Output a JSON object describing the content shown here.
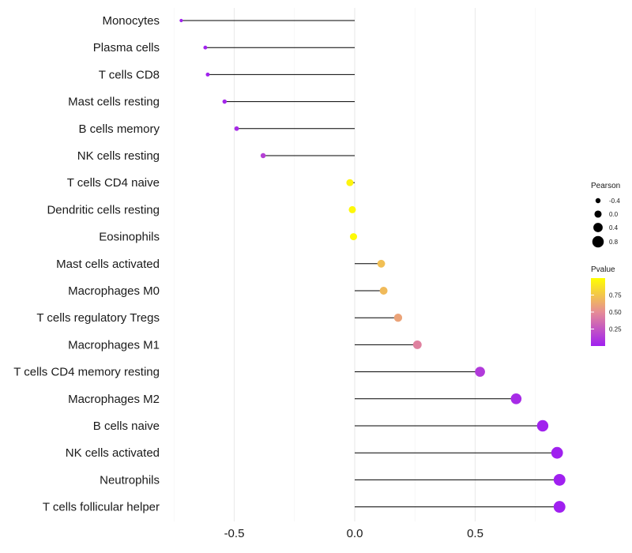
{
  "chart_data": {
    "type": "lollipop",
    "title": "",
    "xlabel": "",
    "ylabel": "",
    "xlim": [
      -0.75,
      0.9
    ],
    "xticks": [
      -0.5,
      0.0,
      0.5
    ],
    "xtick_labels": [
      "-0.5",
      "0.0",
      "0.5"
    ],
    "grid": true,
    "legend_position": "right",
    "categories": [
      "Monocytes",
      "Plasma cells",
      "T cells CD8",
      "Mast cells resting",
      "B cells memory",
      "NK cells resting",
      "T cells CD4 naive",
      "Dendritic cells resting",
      "Eosinophils",
      "Mast cells activated",
      "Macrophages M0",
      "T cells regulatory  Tregs ",
      "Macrophages M1",
      "T cells CD4 memory resting",
      "Macrophages M2",
      "B cells naive",
      "NK cells activated",
      "Neutrophils",
      "T cells follicular helper"
    ],
    "pearson": [
      -0.72,
      -0.62,
      -0.61,
      -0.54,
      -0.49,
      -0.38,
      -0.02,
      -0.01,
      -0.005,
      0.11,
      0.12,
      0.18,
      0.26,
      0.52,
      0.67,
      0.78,
      0.84,
      0.85,
      0.85
    ],
    "pvalue": [
      0.005,
      0.01,
      0.01,
      0.03,
      0.05,
      0.15,
      0.95,
      0.97,
      0.98,
      0.72,
      0.7,
      0.6,
      0.45,
      0.12,
      0.05,
      0.01,
      0.003,
      0.002,
      0.002
    ],
    "size_legend": {
      "title": "Pearson",
      "labels": [
        "-0.4",
        "0.0",
        "0.4",
        "0.8"
      ],
      "values": [
        -0.4,
        0.0,
        0.4,
        0.8
      ]
    },
    "color_legend": {
      "title": "Pvalue",
      "labels": [
        "0.75",
        "0.50",
        "0.25"
      ],
      "values": [
        0.75,
        0.5,
        0.25
      ],
      "range": [
        0.0,
        1.0
      ],
      "low_color": "#a020f0",
      "high_color": "#ffff00"
    }
  }
}
